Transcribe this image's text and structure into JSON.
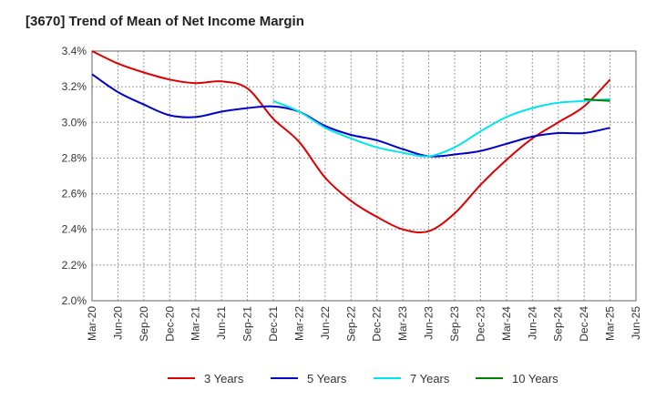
{
  "title": "[3670]  Trend of Mean of Net Income Margin",
  "chart_data": {
    "type": "line",
    "title": "[3670]  Trend of Mean of Net Income Margin",
    "xlabel": "",
    "ylabel": "",
    "ylim": [
      2.0,
      3.4
    ],
    "y_ticks": [
      2.0,
      2.2,
      2.4,
      2.6,
      2.8,
      3.0,
      3.2,
      3.4
    ],
    "y_tick_labels": [
      "2.0%",
      "2.2%",
      "2.4%",
      "2.6%",
      "2.8%",
      "3.0%",
      "3.2%",
      "3.4%"
    ],
    "x_ticks": [
      "Mar-20",
      "Jun-20",
      "Sep-20",
      "Dec-20",
      "Mar-21",
      "Jun-21",
      "Sep-21",
      "Dec-21",
      "Mar-22",
      "Jun-22",
      "Sep-22",
      "Dec-22",
      "Mar-23",
      "Jun-23",
      "Sep-23",
      "Dec-23",
      "Mar-24",
      "Jun-24",
      "Sep-24",
      "Dec-24",
      "Mar-25",
      "Jun-25"
    ],
    "grid": true,
    "legend_position": "bottom",
    "series": [
      {
        "name": "3 Years",
        "color": "#dd0000",
        "x": [
          "Mar-20",
          "Jun-20",
          "Sep-20",
          "Dec-20",
          "Mar-21",
          "Jun-21",
          "Sep-21",
          "Dec-21",
          "Mar-22",
          "Jun-22",
          "Sep-22",
          "Dec-22",
          "Mar-23",
          "Jun-23",
          "Sep-23",
          "Dec-23",
          "Mar-24",
          "Jun-24",
          "Sep-24",
          "Dec-24",
          "Mar-25"
        ],
        "values": [
          3.4,
          3.33,
          3.28,
          3.24,
          3.22,
          3.23,
          3.19,
          3.02,
          2.89,
          2.69,
          2.56,
          2.47,
          2.4,
          2.39,
          2.49,
          2.65,
          2.79,
          2.91,
          3.0,
          3.09,
          3.24
        ]
      },
      {
        "name": "5 Years",
        "color": "#0000cc",
        "x": [
          "Mar-20",
          "Jun-20",
          "Sep-20",
          "Dec-20",
          "Mar-21",
          "Jun-21",
          "Sep-21",
          "Dec-21",
          "Mar-22",
          "Jun-22",
          "Sep-22",
          "Dec-22",
          "Mar-23",
          "Jun-23",
          "Sep-23",
          "Dec-23",
          "Mar-24",
          "Jun-24",
          "Sep-24",
          "Dec-24",
          "Mar-25"
        ],
        "values": [
          3.27,
          3.17,
          3.1,
          3.04,
          3.03,
          3.06,
          3.08,
          3.09,
          3.06,
          2.98,
          2.93,
          2.9,
          2.85,
          2.81,
          2.82,
          2.84,
          2.88,
          2.92,
          2.94,
          2.94,
          2.97
        ]
      },
      {
        "name": "7 Years",
        "color": "#00e5ee",
        "x": [
          "Dec-21",
          "Mar-22",
          "Jun-22",
          "Sep-22",
          "Dec-22",
          "Mar-23",
          "Jun-23",
          "Sep-23",
          "Dec-23",
          "Mar-24",
          "Jun-24",
          "Sep-24",
          "Dec-24",
          "Mar-25"
        ],
        "values": [
          3.12,
          3.06,
          2.97,
          2.91,
          2.86,
          2.83,
          2.81,
          2.86,
          2.95,
          3.03,
          3.08,
          3.11,
          3.12,
          3.13
        ]
      },
      {
        "name": "10 Years",
        "color": "#008000",
        "x": [
          "Dec-24",
          "Mar-25"
        ],
        "values": [
          3.13,
          3.12
        ]
      }
    ]
  }
}
